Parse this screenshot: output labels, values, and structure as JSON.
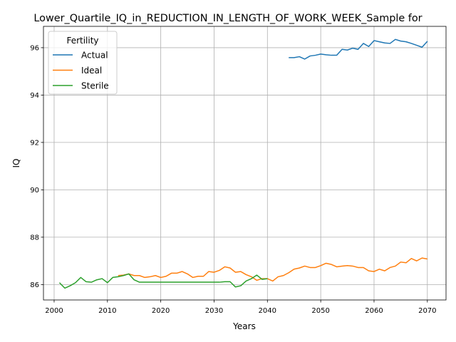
{
  "chart_data": {
    "type": "line",
    "title": "Lower_Quartile_IQ_in_REDUCTION_IN_LENGTH_OF_WORK_WEEK_Sample for",
    "xlabel": "Years",
    "ylabel": "IQ",
    "xlim": [
      1998,
      2073.5
    ],
    "ylim": [
      85.35,
      96.9
    ],
    "xticks": [
      2000,
      2010,
      2020,
      2030,
      2040,
      2050,
      2060,
      2070
    ],
    "yticks": [
      86,
      88,
      90,
      92,
      94,
      96
    ],
    "grid": true,
    "legend": {
      "title": "Fertility",
      "placement": "top-left"
    },
    "series": [
      {
        "name": "Actual",
        "color": "#1f77b4",
        "x": [
          2044,
          2045,
          2046,
          2047,
          2048,
          2049,
          2050,
          2051,
          2052,
          2053,
          2054,
          2055,
          2056,
          2057,
          2058,
          2059,
          2060,
          2061,
          2062,
          2063,
          2064,
          2065,
          2066,
          2067,
          2068,
          2069,
          2070
        ],
        "y": [
          95.58,
          95.58,
          95.62,
          95.52,
          95.65,
          95.68,
          95.73,
          95.7,
          95.68,
          95.68,
          95.93,
          95.9,
          95.98,
          95.93,
          96.18,
          96.05,
          96.3,
          96.25,
          96.2,
          96.18,
          96.35,
          96.28,
          96.25,
          96.18,
          96.1,
          96.02,
          96.27
        ]
      },
      {
        "name": "Ideal",
        "color": "#ff7f0e",
        "x": [
          2012,
          2013,
          2014,
          2015,
          2016,
          2017,
          2018,
          2019,
          2020,
          2021,
          2022,
          2023,
          2024,
          2025,
          2026,
          2027,
          2028,
          2029,
          2030,
          2031,
          2032,
          2033,
          2034,
          2035,
          2036,
          2037,
          2038,
          2039,
          2040,
          2041,
          2042,
          2043,
          2044,
          2045,
          2046,
          2047,
          2048,
          2049,
          2050,
          2051,
          2052,
          2053,
          2054,
          2055,
          2056,
          2057,
          2058,
          2059,
          2060,
          2061,
          2062,
          2063,
          2064,
          2065,
          2066,
          2067,
          2068,
          2069,
          2070
        ],
        "y": [
          86.38,
          86.4,
          86.45,
          86.38,
          86.38,
          86.3,
          86.33,
          86.38,
          86.3,
          86.35,
          86.48,
          86.48,
          86.55,
          86.45,
          86.3,
          86.35,
          86.35,
          86.55,
          86.52,
          86.6,
          86.75,
          86.7,
          86.52,
          86.55,
          86.42,
          86.33,
          86.18,
          86.25,
          86.25,
          86.15,
          86.33,
          86.38,
          86.5,
          86.65,
          86.7,
          86.78,
          86.72,
          86.72,
          86.8,
          86.9,
          86.85,
          86.75,
          86.78,
          86.8,
          86.78,
          86.72,
          86.72,
          86.58,
          86.55,
          86.65,
          86.58,
          86.72,
          86.78,
          86.95,
          86.92,
          87.1,
          87.0,
          87.12,
          87.08
        ]
      },
      {
        "name": "Sterile",
        "color": "#2ca02c",
        "x": [
          2001,
          2002,
          2003,
          2004,
          2005,
          2006,
          2007,
          2008,
          2009,
          2010,
          2011,
          2012,
          2013,
          2014,
          2015,
          2016,
          2017,
          2018,
          2019,
          2020,
          2021,
          2022,
          2023,
          2024,
          2025,
          2026,
          2027,
          2028,
          2029,
          2030,
          2031,
          2032,
          2033,
          2034,
          2035,
          2036,
          2037,
          2038,
          2039,
          2040
        ],
        "y": [
          86.08,
          85.85,
          85.95,
          86.08,
          86.3,
          86.12,
          86.1,
          86.2,
          86.25,
          86.08,
          86.3,
          86.33,
          86.38,
          86.45,
          86.2,
          86.1,
          86.1,
          86.1,
          86.1,
          86.1,
          86.1,
          86.1,
          86.1,
          86.1,
          86.1,
          86.1,
          86.1,
          86.1,
          86.1,
          86.1,
          86.1,
          86.12,
          86.12,
          85.9,
          85.95,
          86.15,
          86.25,
          86.4,
          86.22,
          86.25
        ]
      }
    ]
  }
}
